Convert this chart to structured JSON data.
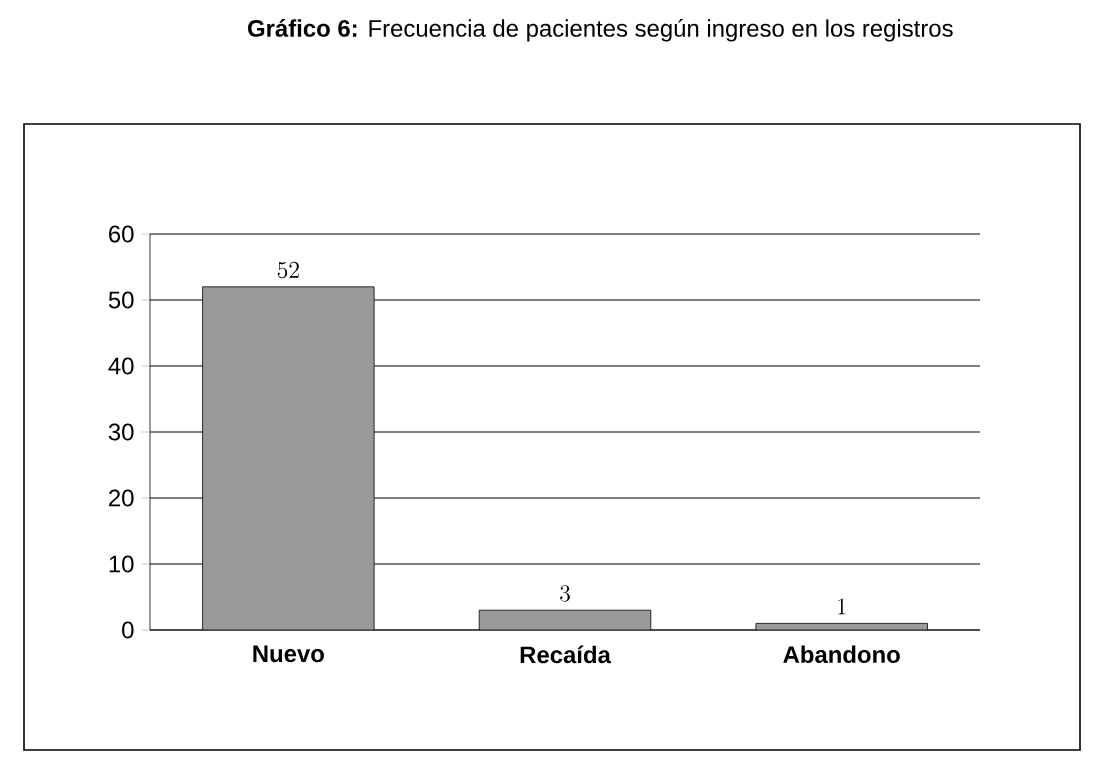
{
  "chart_data": {
    "type": "bar",
    "title": "**Gráfico 6:** Frecuencia de pacientes según ingreso en los registros",
    "categories": [
      "Nuevo",
      "Recaída",
      "Abandono"
    ],
    "values": [
      52,
      3,
      1
    ],
    "color": "#9a9a9a",
    "ylim": [
      0,
      60
    ],
    "yticks": [
      0,
      10,
      20,
      30,
      40,
      50,
      60
    ],
    "grid": "y",
    "data_labels": true
  }
}
